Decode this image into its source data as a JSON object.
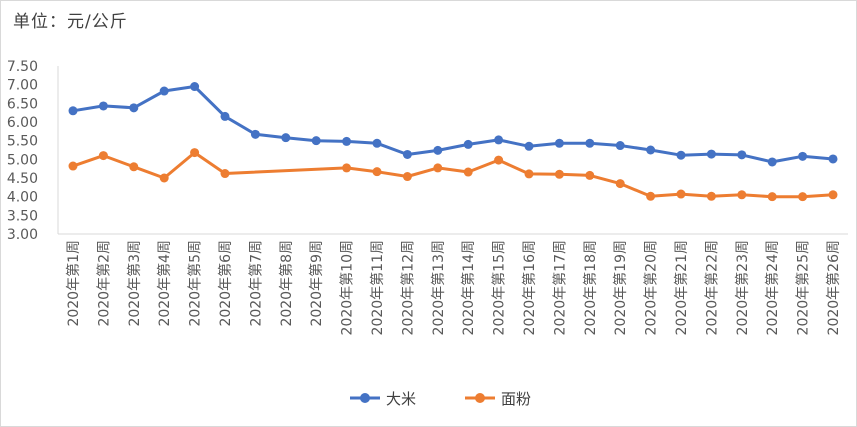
{
  "unit_label": "单位：元/公斤",
  "chart_data": {
    "type": "line",
    "title": "",
    "xlabel": "",
    "ylabel": "单位：元/公斤",
    "ylim": [
      3.0,
      7.5
    ],
    "yticks": [
      "3.00",
      "3.50",
      "4.00",
      "4.50",
      "5.00",
      "5.50",
      "6.00",
      "6.50",
      "7.00",
      "7.50"
    ],
    "grid": false,
    "legend_position": "bottom",
    "categories": [
      "2020年第1周",
      "2020年第2周",
      "2020年第3周",
      "2020年第4周",
      "2020年第5周",
      "2020年第6周",
      "2020年第7周",
      "2020年第8周",
      "2020年第9周",
      "2020年第10周",
      "2020年第11周",
      "2020年第12周",
      "2020年第13周",
      "2020年第14周",
      "2020年第15周",
      "2020年第16周",
      "2020年第17周",
      "2020年第18周",
      "2020年第19周",
      "2020年第20周",
      "2020年第21周",
      "2020年第22周",
      "2020年第23周",
      "2020年第24周",
      "2020年第25周",
      "2020年第26周"
    ],
    "series": [
      {
        "name": "大米",
        "color": "#4472c4",
        "values": [
          6.3,
          6.43,
          6.38,
          6.83,
          6.95,
          6.15,
          5.67,
          5.58,
          5.5,
          5.48,
          5.43,
          5.13,
          5.24,
          5.4,
          5.52,
          5.35,
          5.43,
          5.43,
          5.37,
          5.25,
          5.11,
          5.14,
          5.12,
          4.93,
          5.08,
          5.01
        ]
      },
      {
        "name": "面粉",
        "color": "#ed7d31",
        "values": [
          4.82,
          5.1,
          4.8,
          4.5,
          5.18,
          4.62,
          null,
          null,
          null,
          4.77,
          4.67,
          4.54,
          4.77,
          4.66,
          4.98,
          4.61,
          4.6,
          4.57,
          4.35,
          4.01,
          4.07,
          4.01,
          4.05,
          4.0,
          4.0,
          4.05
        ]
      }
    ]
  }
}
